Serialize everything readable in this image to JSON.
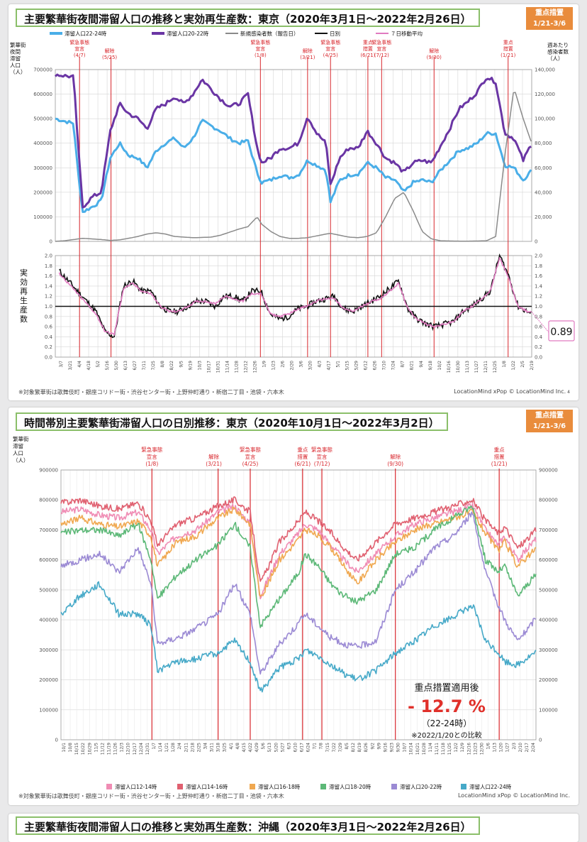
{
  "panel1": {
    "title": "主要繁華街夜間滞留人口の推移と実効再生産数：東京（2020年3月1日～2022年2月26日）",
    "badge": [
      "重点措置",
      "1/21-3/6"
    ],
    "legend": [
      "滞留人口22-24時",
      "滞留人口20-22時",
      "新規感染者数（報告日）",
      "日別",
      "７日移動平均"
    ],
    "ylabel_left": [
      "繁華街",
      "夜間",
      "滞留",
      "人口",
      "（人）"
    ],
    "ylabel_right": [
      "週あたり",
      "感染者数",
      "（人）"
    ],
    "ylabel_rt": [
      "実",
      "効",
      "再",
      "生",
      "産",
      "数"
    ],
    "yticks_left": [
      "700000",
      "600000",
      "500000",
      "400000",
      "300000",
      "200000",
      "100000",
      "0"
    ],
    "yticks_right": [
      "140,000",
      "120,000",
      "100,000",
      "80,000",
      "60,000",
      "40,000",
      "20,000",
      "0"
    ],
    "yticks_rt": [
      "2.0",
      "1.8",
      "1.6",
      "1.4",
      "1.2",
      "1.0",
      "0.8",
      "0.6",
      "0.4",
      "0.2",
      "0.0"
    ],
    "events": [
      {
        "label": [
          "緊急事態",
          "宣言",
          "(4/7)"
        ]
      },
      {
        "label": [
          "解除",
          "(5/25)"
        ]
      },
      {
        "label": [
          "緊急事態",
          "宣言",
          "(1/8)"
        ]
      },
      {
        "label": [
          "解除",
          "(3/21)"
        ]
      },
      {
        "label": [
          "緊急事態",
          "宣言",
          "(4/25)"
        ]
      },
      {
        "label": [
          "重点",
          "措置",
          "(6/21)"
        ]
      },
      {
        "label": [
          "緊急事態",
          "宣言",
          "(7/12)"
        ]
      },
      {
        "label": [
          "解除",
          "(9/30)"
        ]
      },
      {
        "label": [
          "重点",
          "措置",
          "(1/21)"
        ]
      }
    ],
    "xticks": [
      "3/7",
      "3/21",
      "4/4",
      "4/18",
      "5/2",
      "5/16",
      "5/30",
      "6/13",
      "6/27",
      "7/11",
      "7/25",
      "8/8",
      "8/22",
      "9/5",
      "9/19",
      "10/3",
      "10/17",
      "10/31",
      "11/14",
      "11/28",
      "12/12",
      "12/26",
      "1/9",
      "1/23",
      "2/6",
      "2/20",
      "3/6",
      "3/20",
      "4/3",
      "4/17",
      "5/1",
      "5/15",
      "5/29",
      "6/12",
      "6/26",
      "7/10",
      "7/24",
      "8/7",
      "8/21",
      "9/4",
      "9/18",
      "10/2",
      "10/16",
      "10/30",
      "11/13",
      "11/27",
      "12/11",
      "12/25",
      "1/8",
      "1/22",
      "2/5",
      "2/19"
    ],
    "rt_latest": "0.89",
    "footnote": "※対象繁華街は歌舞伎町・銀座コリドー街・渋谷センター街・上野仲町通り・新宿二丁目・池袋・六本木",
    "credit": "LocationMind xPop © LocationMind Inc.",
    "page_no": "4"
  },
  "panel2": {
    "title": "時間帯別主要繁華街滞留人口の日別推移：東京（2020年10月1日～2022年3月2日）",
    "badge": [
      "重点措置",
      "1/21-3/6"
    ],
    "ylabel_left": [
      "繁華街",
      "滞留",
      "人口",
      "（人）"
    ],
    "yticks": [
      "900000",
      "800000",
      "700000",
      "600000",
      "500000",
      "400000",
      "300000",
      "200000",
      "100000",
      "0"
    ],
    "events": [
      {
        "label": [
          "緊急事態",
          "宣言",
          "(1/8)"
        ]
      },
      {
        "label": [
          "解除",
          "(3/21)"
        ]
      },
      {
        "label": [
          "緊急事態",
          "宣言",
          "(4/25)"
        ]
      },
      {
        "label": [
          "重点",
          "措置",
          "(6/21)"
        ]
      },
      {
        "label": [
          "緊急事態",
          "宣言",
          "(7/12)"
        ]
      },
      {
        "label": [
          "解除",
          "(9/30)"
        ]
      },
      {
        "label": [
          "重点",
          "措置",
          "(1/21)"
        ]
      }
    ],
    "xticks": [
      "10/1",
      "10/8",
      "10/15",
      "10/22",
      "10/29",
      "11/5",
      "11/12",
      "11/19",
      "11/26",
      "12/3",
      "12/10",
      "12/17",
      "12/24",
      "12/31",
      "1/7",
      "1/14",
      "1/21",
      "1/28",
      "2/4",
      "2/11",
      "2/18",
      "2/25",
      "3/4",
      "3/11",
      "3/18",
      "3/25",
      "4/1",
      "4/8",
      "4/15",
      "4/22",
      "4/29",
      "5/6",
      "5/13",
      "5/20",
      "5/27",
      "6/3",
      "6/10",
      "6/17",
      "6/24",
      "7/1",
      "7/8",
      "7/15",
      "7/22",
      "7/29",
      "8/5",
      "8/12",
      "8/19",
      "8/26",
      "9/2",
      "9/9",
      "9/16",
      "9/23",
      "9/30",
      "10/7",
      "10/14",
      "10/21",
      "10/28",
      "11/4",
      "11/11",
      "11/18",
      "11/25",
      "12/2",
      "12/9",
      "12/16",
      "12/23",
      "12/30",
      "1/6",
      "1/13",
      "1/20",
      "1/27",
      "2/3",
      "2/10",
      "2/17",
      "2/24"
    ],
    "legend": [
      "滞留人口12-14時",
      "滞留人口14-16時",
      "滞留人口16-18時",
      "滞留人口18-20時",
      "滞留人口20-22時",
      "滞留人口22-24時"
    ],
    "callout": {
      "heading": "重点措置適用後",
      "value": "- 12.7 %",
      "sub": "（22-24時）",
      "note": "※2022/1/20との比較"
    },
    "footnote": "※対象繁華街は歌舞伎町・銀座コリドー街・渋谷センター街・上野仲町通り・新宿二丁目・池袋・六本木",
    "credit": "LocationMind xPop © LocationMind Inc."
  },
  "panel3": {
    "title": "主要繁華街夜間滞留人口の推移と実効再生産数：沖縄（2020年3月1日～2022年2月26日）"
  },
  "colors": {
    "pop2224": "#4aaee8",
    "pop2022": "#6a35a4",
    "cases": "#8a8a8a",
    "rt_daily": "#111111",
    "rt_ma": "#e07ac0",
    "event_line": "#d8262c",
    "p1214": "#f08cb4",
    "p1416": "#e06070",
    "p1618": "#f0a850",
    "p1820": "#5cb877",
    "p2022": "#9b8ad4",
    "p2224": "#46a9c8",
    "callout_red": "#e0302a",
    "title_border": "#8bbf6a",
    "badge": "#e98c3c"
  },
  "chart_data": [
    {
      "type": "line",
      "title": "主要繁華街夜間滞留人口の推移と実効再生産数：東京（2020年3月1日～2022年2月26日）",
      "ylabel": "繁華街夜間滞留人口（人）",
      "ylabel_right": "週あたり感染者数（人）",
      "ylim": [
        0,
        700000
      ],
      "ylim_right": [
        0,
        140000
      ],
      "x": [
        "2020-03-01",
        "2020-03-15",
        "2020-03-29",
        "2020-04-05",
        "2020-04-12",
        "2020-04-26",
        "2020-05-10",
        "2020-05-24",
        "2020-06-07",
        "2020-06-21",
        "2020-07-05",
        "2020-07-19",
        "2020-08-02",
        "2020-08-16",
        "2020-08-30",
        "2020-09-13",
        "2020-09-27",
        "2020-10-11",
        "2020-10-25",
        "2020-11-08",
        "2020-11-22",
        "2020-12-06",
        "2020-12-20",
        "2021-01-03",
        "2021-01-10",
        "2021-01-24",
        "2021-02-07",
        "2021-02-21",
        "2021-03-07",
        "2021-03-21",
        "2021-04-04",
        "2021-04-18",
        "2021-04-25",
        "2021-05-09",
        "2021-05-23",
        "2021-06-06",
        "2021-06-20",
        "2021-07-04",
        "2021-07-18",
        "2021-08-01",
        "2021-08-15",
        "2021-08-29",
        "2021-09-12",
        "2021-09-26",
        "2021-10-10",
        "2021-10-24",
        "2021-11-07",
        "2021-11-21",
        "2021-12-05",
        "2021-12-19",
        "2022-01-02",
        "2022-01-16",
        "2022-01-30",
        "2022-02-13",
        "2022-02-26"
      ],
      "series": [
        {
          "name": "滞留人口22-24時",
          "values": [
            500000,
            490000,
            480000,
            270000,
            120000,
            140000,
            165000,
            340000,
            400000,
            350000,
            340000,
            300000,
            370000,
            400000,
            420000,
            380000,
            420000,
            490000,
            470000,
            450000,
            420000,
            400000,
            410000,
            280000,
            240000,
            250000,
            270000,
            260000,
            270000,
            330000,
            310000,
            290000,
            160000,
            250000,
            270000,
            275000,
            320000,
            300000,
            260000,
            250000,
            200000,
            240000,
            250000,
            240000,
            290000,
            330000,
            370000,
            380000,
            400000,
            440000,
            440000,
            310000,
            300000,
            250000,
            290000
          ]
        },
        {
          "name": "滞留人口20-22時",
          "values": [
            680000,
            675000,
            670000,
            380000,
            140000,
            180000,
            200000,
            450000,
            560000,
            520000,
            500000,
            460000,
            540000,
            560000,
            590000,
            560000,
            600000,
            660000,
            620000,
            580000,
            550000,
            560000,
            600000,
            380000,
            320000,
            340000,
            380000,
            380000,
            400000,
            510000,
            440000,
            400000,
            230000,
            340000,
            380000,
            380000,
            450000,
            400000,
            340000,
            320000,
            280000,
            320000,
            330000,
            320000,
            390000,
            460000,
            540000,
            570000,
            610000,
            670000,
            650000,
            440000,
            420000,
            330000,
            400000
          ]
        },
        {
          "name": "新規感染者数（報告日）",
          "values": [
            0,
            500,
            1500,
            2000,
            2500,
            2000,
            1500,
            800,
            1200,
            2500,
            4000,
            6000,
            7000,
            6000,
            4000,
            3500,
            3000,
            3200,
            3500,
            5000,
            7500,
            10000,
            12000,
            20000,
            14000,
            8000,
            4000,
            2500,
            2500,
            3000,
            4500,
            6000,
            6500,
            5000,
            3500,
            3000,
            4000,
            7000,
            20000,
            35000,
            40000,
            25000,
            8000,
            2000,
            500,
            300,
            200,
            200,
            300,
            500,
            4000,
            70000,
            125000,
            100000,
            80000
          ]
        }
      ]
    },
    {
      "type": "line",
      "title": "実効再生産数",
      "ylabel": "実効再生産数",
      "ylim": [
        0,
        2.0
      ],
      "x": [
        "2020-03-07",
        "2020-03-21",
        "2020-04-04",
        "2020-04-18",
        "2020-05-02",
        "2020-05-16",
        "2020-05-30",
        "2020-06-13",
        "2020-06-27",
        "2020-07-11",
        "2020-07-25",
        "2020-08-08",
        "2020-08-22",
        "2020-09-05",
        "2020-09-19",
        "2020-10-03",
        "2020-10-17",
        "2020-10-31",
        "2020-11-14",
        "2020-11-28",
        "2020-12-12",
        "2020-12-26",
        "2021-01-09",
        "2021-01-23",
        "2021-02-06",
        "2021-02-20",
        "2021-03-06",
        "2021-03-20",
        "2021-04-03",
        "2021-04-17",
        "2021-05-01",
        "2021-05-15",
        "2021-05-29",
        "2021-06-12",
        "2021-06-26",
        "2021-07-10",
        "2021-07-24",
        "2021-08-07",
        "2021-08-21",
        "2021-09-04",
        "2021-09-18",
        "2021-10-02",
        "2021-10-16",
        "2021-10-30",
        "2021-11-13",
        "2021-11-27",
        "2021-12-11",
        "2021-12-25",
        "2022-01-08",
        "2022-01-22",
        "2022-02-05",
        "2022-02-19",
        "2022-02-26"
      ],
      "series": [
        {
          "name": "日別",
          "values": [
            1.7,
            1.5,
            1.3,
            1.1,
            0.9,
            0.5,
            0.4,
            1.4,
            1.5,
            1.3,
            1.3,
            1.0,
            0.9,
            0.9,
            1.0,
            1.1,
            1.1,
            1.0,
            1.2,
            1.2,
            1.1,
            1.3,
            1.3,
            0.85,
            0.75,
            0.8,
            0.95,
            1.0,
            1.1,
            1.15,
            1.2,
            0.95,
            0.9,
            1.0,
            1.1,
            1.2,
            1.35,
            1.5,
            0.95,
            0.75,
            0.65,
            0.6,
            0.65,
            0.7,
            0.9,
            1.0,
            1.15,
            1.3,
            2.0,
            1.6,
            1.0,
            0.9,
            0.85
          ]
        },
        {
          "name": "７日移動平均",
          "values": [
            1.65,
            1.45,
            1.25,
            1.05,
            0.85,
            0.5,
            0.45,
            1.35,
            1.45,
            1.3,
            1.25,
            1.0,
            0.9,
            0.9,
            1.0,
            1.1,
            1.1,
            1.05,
            1.2,
            1.15,
            1.1,
            1.25,
            1.25,
            0.85,
            0.8,
            0.85,
            0.95,
            1.0,
            1.1,
            1.15,
            1.15,
            0.95,
            0.9,
            1.0,
            1.1,
            1.15,
            1.3,
            1.45,
            0.95,
            0.75,
            0.65,
            0.6,
            0.65,
            0.7,
            0.9,
            1.0,
            1.15,
            1.3,
            1.95,
            1.55,
            1.0,
            0.9,
            0.89
          ]
        }
      ]
    },
    {
      "type": "line",
      "title": "時間帯別主要繁華街滞留人口の日別推移：東京（2020年10月1日～2022年3月2日）",
      "ylabel": "繁華街滞留人口（人）",
      "ylim": [
        0,
        900000
      ],
      "x": [
        "2020-10-01",
        "2020-10-22",
        "2020-11-12",
        "2020-12-03",
        "2020-12-24",
        "2021-01-07",
        "2021-01-14",
        "2021-02-04",
        "2021-02-25",
        "2021-03-21",
        "2021-04-08",
        "2021-04-25",
        "2021-05-06",
        "2021-05-27",
        "2021-06-17",
        "2021-06-24",
        "2021-07-08",
        "2021-07-22",
        "2021-08-05",
        "2021-08-19",
        "2021-09-09",
        "2021-09-30",
        "2021-10-21",
        "2021-11-11",
        "2021-12-02",
        "2021-12-23",
        "2022-01-06",
        "2022-01-20",
        "2022-01-27",
        "2022-02-10",
        "2022-02-24",
        "2022-03-02"
      ],
      "series": [
        {
          "name": "滞留人口12-14時",
          "values": [
            760000,
            770000,
            750000,
            740000,
            760000,
            700000,
            620000,
            680000,
            700000,
            760000,
            780000,
            720000,
            480000,
            620000,
            690000,
            720000,
            700000,
            650000,
            600000,
            560000,
            620000,
            680000,
            720000,
            740000,
            760000,
            780000,
            700000,
            650000,
            680000,
            600000,
            650000,
            670000
          ]
        },
        {
          "name": "滞留人口14-16時",
          "values": [
            790000,
            800000,
            780000,
            770000,
            790000,
            730000,
            650000,
            720000,
            740000,
            780000,
            800000,
            760000,
            520000,
            660000,
            730000,
            760000,
            730000,
            690000,
            640000,
            600000,
            660000,
            720000,
            740000,
            760000,
            780000,
            800000,
            730000,
            690000,
            710000,
            640000,
            680000,
            700000
          ]
        },
        {
          "name": "滞留人口16-18時",
          "values": [
            720000,
            740000,
            720000,
            710000,
            730000,
            680000,
            580000,
            660000,
            680000,
            740000,
            770000,
            720000,
            470000,
            600000,
            670000,
            700000,
            680000,
            640000,
            580000,
            520000,
            600000,
            660000,
            700000,
            720000,
            740000,
            760000,
            690000,
            630000,
            660000,
            580000,
            620000,
            640000
          ]
        },
        {
          "name": "滞留人口18-20時",
          "values": [
            690000,
            700000,
            700000,
            680000,
            720000,
            600000,
            470000,
            550000,
            600000,
            650000,
            720000,
            640000,
            380000,
            470000,
            560000,
            620000,
            580000,
            520000,
            480000,
            460000,
            500000,
            620000,
            640000,
            700000,
            740000,
            780000,
            600000,
            560000,
            580000,
            480000,
            530000,
            550000
          ]
        },
        {
          "name": "滞留人口20-22時",
          "values": [
            580000,
            600000,
            620000,
            560000,
            640000,
            520000,
            320000,
            340000,
            370000,
            420000,
            520000,
            420000,
            220000,
            320000,
            390000,
            420000,
            380000,
            340000,
            320000,
            310000,
            330000,
            500000,
            560000,
            640000,
            680000,
            760000,
            560000,
            450000,
            400000,
            330000,
            380000,
            410000
          ]
        },
        {
          "name": "滞留人口22-24時",
          "values": [
            420000,
            480000,
            520000,
            420000,
            420000,
            380000,
            230000,
            260000,
            270000,
            290000,
            330000,
            260000,
            160000,
            240000,
            270000,
            300000,
            280000,
            250000,
            220000,
            200000,
            230000,
            290000,
            330000,
            380000,
            410000,
            450000,
            330000,
            290000,
            260000,
            250000,
            280000,
            290000
          ]
        }
      ]
    }
  ]
}
